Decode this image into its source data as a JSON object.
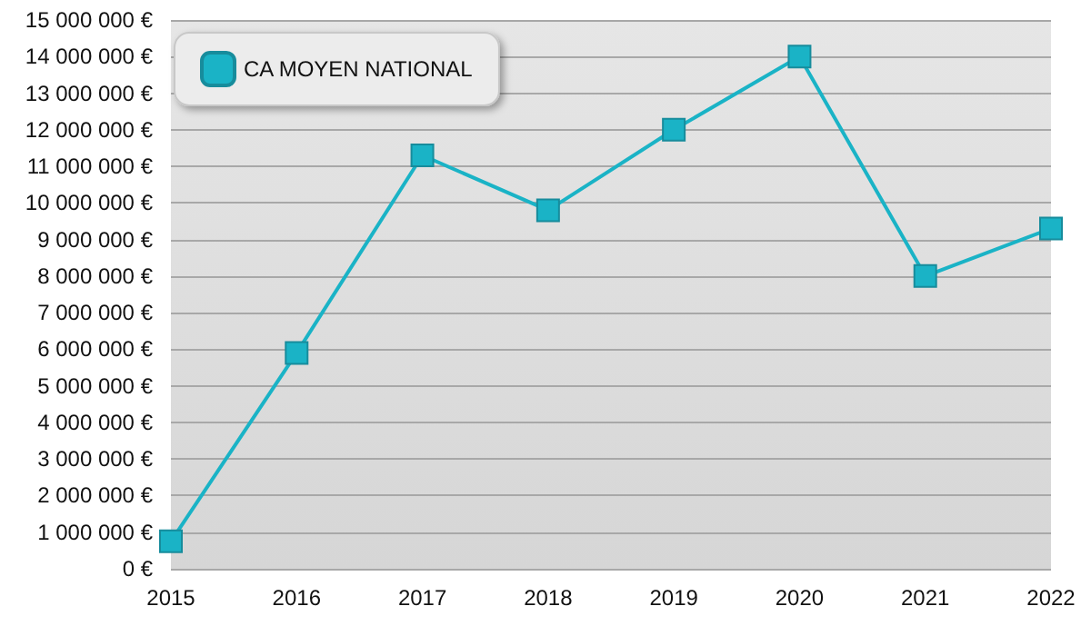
{
  "chart_data": {
    "type": "line",
    "categories": [
      "2015",
      "2016",
      "2017",
      "2018",
      "2019",
      "2020",
      "2021",
      "2022"
    ],
    "series": [
      {
        "name": "CA MOYEN NATIONAL",
        "color": "#1ab3c6",
        "values": [
          750000,
          5900000,
          11300000,
          9800000,
          12000000,
          14000000,
          8000000,
          9300000
        ]
      }
    ],
    "ylim": [
      0,
      15000000
    ],
    "yticks": [
      {
        "value": 0,
        "label": "0 €"
      },
      {
        "value": 1000000,
        "label": "1 000 000 €"
      },
      {
        "value": 2000000,
        "label": "2 000 000 €"
      },
      {
        "value": 3000000,
        "label": "3 000 000 €"
      },
      {
        "value": 4000000,
        "label": "4 000 000 €"
      },
      {
        "value": 5000000,
        "label": "5 000 000 €"
      },
      {
        "value": 6000000,
        "label": "6 000 000 €"
      },
      {
        "value": 7000000,
        "label": "7 000 000 €"
      },
      {
        "value": 8000000,
        "label": "8 000 000 €"
      },
      {
        "value": 9000000,
        "label": "9 000 000 €"
      },
      {
        "value": 10000000,
        "label": "10 000 000 €"
      },
      {
        "value": 11000000,
        "label": "11 000 000 €"
      },
      {
        "value": 12000000,
        "label": "12 000 000 €"
      },
      {
        "value": 13000000,
        "label": "13 000 000 €"
      },
      {
        "value": 14000000,
        "label": "14 000 000 €"
      },
      {
        "value": 15000000,
        "label": "15 000 000 €"
      }
    ],
    "grid": "y",
    "legend": "top left",
    "marker": "square",
    "line_style": "solid"
  }
}
